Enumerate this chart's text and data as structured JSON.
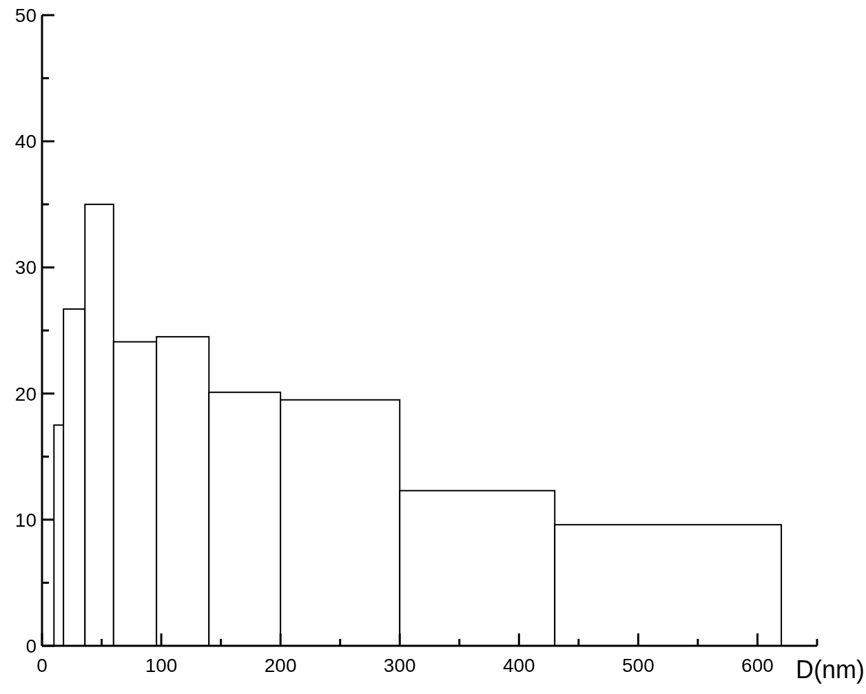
{
  "chart_data": {
    "type": "histogram",
    "xlabel": "D(nm)",
    "bins": [
      10,
      18,
      36,
      60,
      96,
      140,
      200,
      300,
      430,
      620
    ],
    "values": [
      17.5,
      26.7,
      35,
      24.1,
      24.5,
      20.1,
      19.5,
      12.3,
      9.6
    ],
    "color": "#ffffff",
    "xlim": [
      0,
      650
    ],
    "xticks": [
      0,
      {
        "value": 50,
        "label": null
      },
      100,
      {
        "value": 150,
        "label": null
      },
      200,
      {
        "value": 250,
        "label": null
      },
      300,
      {
        "value": 350,
        "label": null
      },
      400,
      {
        "value": 450,
        "label": null
      },
      500,
      {
        "value": 550,
        "label": null
      },
      600,
      {
        "value": 650,
        "label": null
      }
    ],
    "ylim": [
      0,
      50
    ],
    "yticks": [
      0,
      {
        "value": 5,
        "label": null
      },
      10,
      {
        "value": 15,
        "label": null
      },
      20,
      {
        "value": 25,
        "label": null
      },
      30,
      {
        "value": 35,
        "label": null
      },
      40,
      {
        "value": 45,
        "label": null
      },
      50
    ]
  }
}
